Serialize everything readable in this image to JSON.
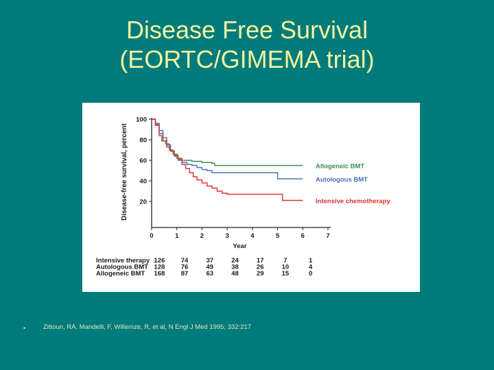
{
  "title": {
    "line1": "Disease Free Survival",
    "line2": "(EORTC/GIMEMA trial)"
  },
  "bullet_icon": "bullet-dot-icon",
  "bullet": "•",
  "citation": "Zittoun, RA, Mandelli, F, Willemze, R, et al, N Engl J Med 1995; 332:217",
  "chart_data": {
    "type": "line",
    "title": "",
    "xlabel": "Year",
    "ylabel": "Disease-free survival, percent",
    "xlim": [
      0,
      7
    ],
    "ylim": [
      0,
      100
    ],
    "xticks": [
      0,
      1,
      2,
      3,
      4,
      5,
      6,
      7
    ],
    "yticks": [
      20,
      40,
      60,
      80,
      100
    ],
    "grid": false,
    "legend": "right",
    "series": [
      {
        "name": "Allogeneic BMT",
        "color": "#3c8c50",
        "points": [
          [
            0,
            100
          ],
          [
            0.15,
            95
          ],
          [
            0.3,
            84
          ],
          [
            0.4,
            79
          ],
          [
            0.55,
            76
          ],
          [
            0.7,
            70
          ],
          [
            0.85,
            66
          ],
          [
            1.0,
            62
          ],
          [
            1.2,
            60
          ],
          [
            1.6,
            59
          ],
          [
            2.0,
            58
          ],
          [
            2.4,
            57
          ],
          [
            2.5,
            55
          ],
          [
            3.5,
            55
          ],
          [
            4.5,
            55
          ],
          [
            5.5,
            55
          ],
          [
            6.0,
            55
          ]
        ]
      },
      {
        "name": "Autologous BMT",
        "color": "#4a72b8",
        "points": [
          [
            0,
            100
          ],
          [
            0.15,
            96
          ],
          [
            0.3,
            89
          ],
          [
            0.45,
            82
          ],
          [
            0.6,
            75
          ],
          [
            0.75,
            69
          ],
          [
            0.9,
            64
          ],
          [
            1.05,
            60
          ],
          [
            1.2,
            58
          ],
          [
            1.4,
            56
          ],
          [
            1.6,
            55
          ],
          [
            1.8,
            53
          ],
          [
            2.0,
            51
          ],
          [
            2.2,
            50
          ],
          [
            2.4,
            48
          ],
          [
            4.0,
            48
          ],
          [
            4.8,
            48
          ],
          [
            5.0,
            42
          ],
          [
            6.0,
            42
          ]
        ]
      },
      {
        "name": "Intensive chemotherapy",
        "color": "#e03030",
        "points": [
          [
            0,
            100
          ],
          [
            0.15,
            94
          ],
          [
            0.3,
            86
          ],
          [
            0.45,
            79
          ],
          [
            0.6,
            73
          ],
          [
            0.75,
            69
          ],
          [
            0.9,
            65
          ],
          [
            1.05,
            61
          ],
          [
            1.2,
            56
          ],
          [
            1.35,
            52
          ],
          [
            1.5,
            48
          ],
          [
            1.65,
            44
          ],
          [
            1.8,
            41
          ],
          [
            2.0,
            38
          ],
          [
            2.2,
            35
          ],
          [
            2.4,
            33
          ],
          [
            2.6,
            30
          ],
          [
            2.8,
            28
          ],
          [
            3.0,
            27
          ],
          [
            4.0,
            27
          ],
          [
            5.0,
            27
          ],
          [
            5.2,
            21
          ],
          [
            6.0,
            21
          ]
        ]
      }
    ],
    "risk_table": {
      "rows": [
        {
          "label": "Intensive therapy",
          "values": [
            "126",
            "74",
            "37",
            "24",
            "17",
            "7",
            "1"
          ]
        },
        {
          "label": "Autologous BMT",
          "values": [
            "128",
            "76",
            "49",
            "38",
            "26",
            "10",
            "4"
          ]
        },
        {
          "label": "Allogeneic BMT",
          "values": [
            "168",
            "87",
            "63",
            "48",
            "29",
            "15",
            "0"
          ]
        }
      ]
    }
  }
}
